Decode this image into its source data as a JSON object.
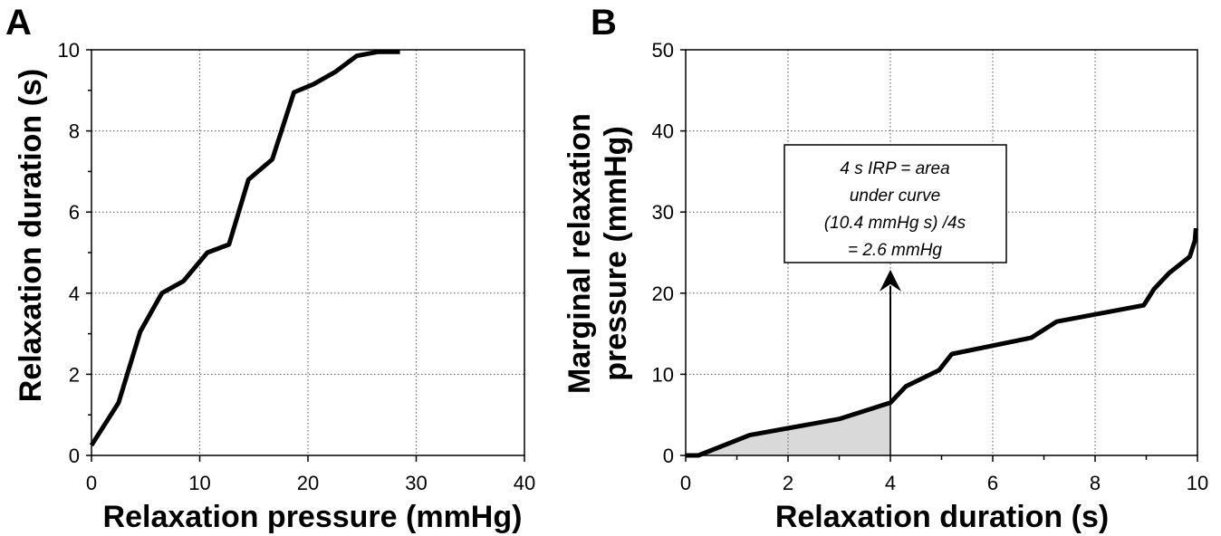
{
  "chart_data": [
    {
      "panel": "A",
      "type": "line",
      "xlabel": "Relaxation pressure (mmHg)",
      "ylabel": "Relaxation duration (s)",
      "xlim": [
        0,
        40
      ],
      "ylim": [
        0,
        10
      ],
      "xticks": [
        0,
        10,
        20,
        30,
        40
      ],
      "yticks": [
        0,
        2,
        4,
        6,
        8,
        10
      ],
      "grid": true,
      "series": [
        {
          "x": [
            0,
            2.5,
            4.5,
            6.5,
            8.5,
            10.7,
            12.7,
            14.5,
            16.7,
            18.7,
            20.5,
            22.5,
            24.5,
            26.5,
            28.5
          ],
          "y": [
            0.25,
            1.3,
            3.05,
            4.0,
            4.3,
            5.0,
            5.2,
            6.8,
            7.3,
            8.95,
            9.15,
            9.45,
            9.85,
            9.95,
            9.95
          ]
        }
      ]
    },
    {
      "panel": "B",
      "type": "area",
      "xlabel": "Relaxation duration (s)",
      "ylabel": "Marginal relaxation pressure (mmHg)",
      "xlim": [
        0,
        10
      ],
      "ylim": [
        0,
        50
      ],
      "xticks": [
        0,
        2,
        4,
        6,
        8,
        10
      ],
      "yticks": [
        0,
        10,
        20,
        30,
        40,
        50
      ],
      "grid": true,
      "shaded_interval": [
        0,
        4
      ],
      "series": [
        {
          "x": [
            0,
            0.25,
            1.25,
            3.0,
            4.0,
            4.3,
            4.95,
            5.2,
            6.75,
            7.25,
            8.95,
            9.15,
            9.45,
            9.85,
            9.95,
            9.97
          ],
          "y": [
            0,
            0,
            2.5,
            4.5,
            6.5,
            8.5,
            10.5,
            12.5,
            14.5,
            16.5,
            18.5,
            20.5,
            22.5,
            24.5,
            26.5,
            28.0
          ]
        }
      ],
      "annotation": {
        "lines": [
          "4 s IRP = area",
          "under curve",
          "(10.4 mmHg s) /4s",
          "= 2.6 mmHg"
        ],
        "arrow_x": 4,
        "arrow_from_y": 6.5,
        "arrow_to_y": 22
      }
    }
  ]
}
